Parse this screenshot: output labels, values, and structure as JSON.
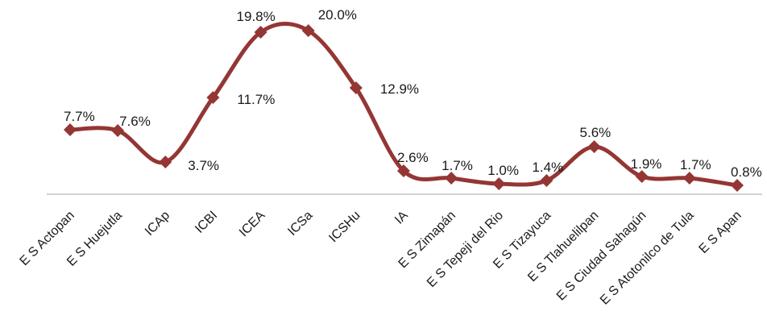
{
  "chart_data": {
    "type": "line",
    "title": "",
    "xlabel": "",
    "ylabel": "",
    "categories": [
      "E S Actopan",
      "E S Huejutla",
      "ICAp",
      "ICBI",
      "ICEA",
      "ICSa",
      "ICSHu",
      "IA",
      "E S Zimapán",
      "E S Tepeji del Rio",
      "E S Tizayuca",
      "E S Tlahuelilpan",
      "E S Ciudad Sahagún",
      "E S Atotonilco de Tula",
      "E S Apan"
    ],
    "values": [
      7.7,
      7.6,
      3.7,
      11.7,
      19.8,
      20.0,
      12.9,
      2.6,
      1.7,
      1.0,
      1.4,
      5.6,
      1.9,
      1.7,
      0.8
    ],
    "data_labels": [
      "7.7%",
      "7.6%",
      "3.7%",
      "11.7%",
      "19.8%",
      "20.0%",
      "12.9%",
      "2.6%",
      "1.7%",
      "1.0%",
      "1.4%",
      "5.6%",
      "1.9%",
      "1.7%",
      "0.8%"
    ],
    "ylim": [
      0,
      20
    ],
    "smooth": true,
    "marker": "diamond",
    "grid": false,
    "legend": "none",
    "series_color": "#943634"
  }
}
